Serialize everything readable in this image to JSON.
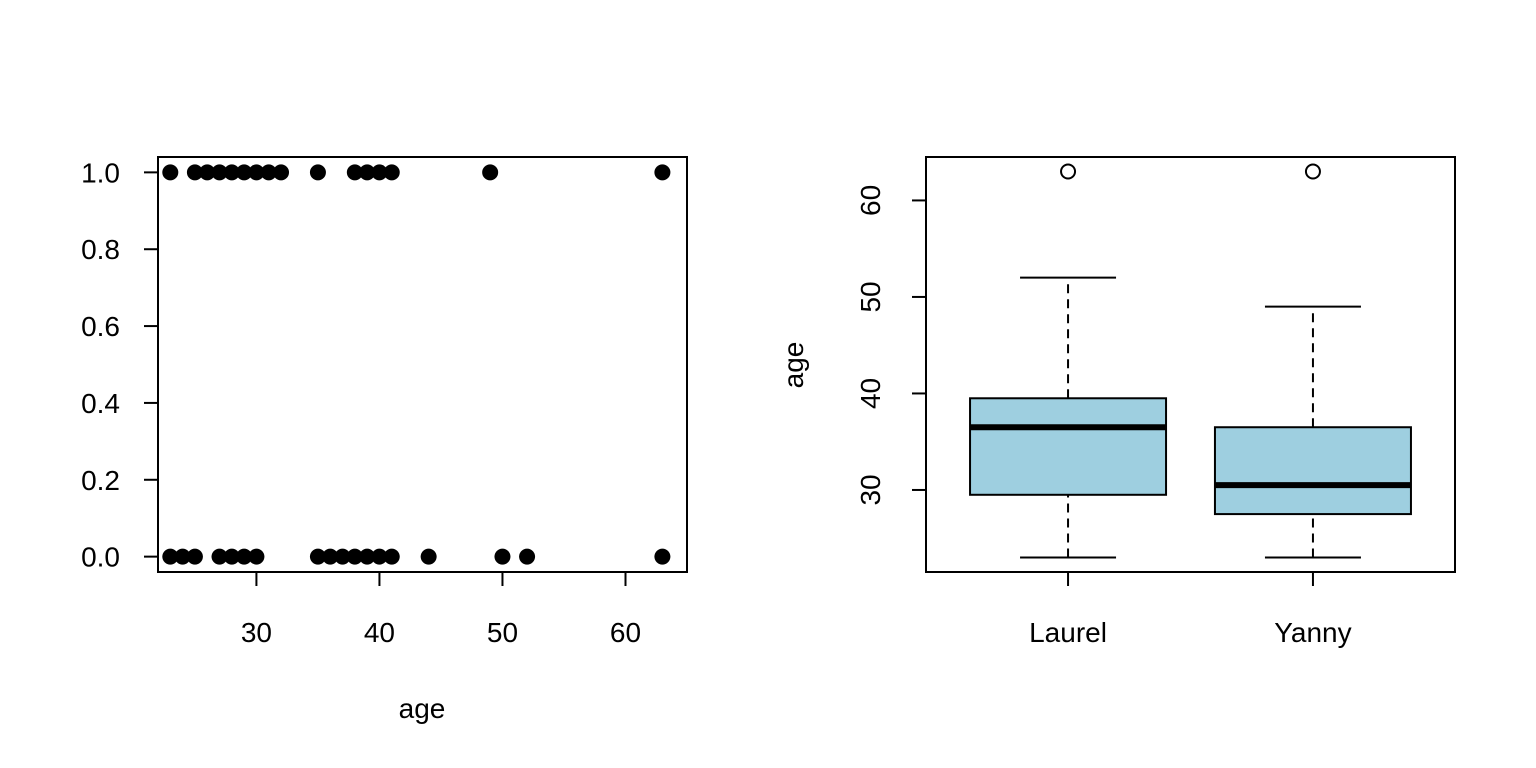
{
  "chart_data": [
    {
      "type": "scatter",
      "title": "",
      "xlabel": "age",
      "ylabel": "",
      "xlim": [
        22,
        65
      ],
      "ylim": [
        -0.04,
        1.04
      ],
      "x_ticks": [
        30,
        40,
        50,
        60
      ],
      "y_ticks": [
        0.0,
        0.2,
        0.4,
        0.6,
        0.8,
        1.0
      ],
      "y_tick_labels": [
        "0.0",
        "0.2",
        "0.4",
        "0.6",
        "0.8",
        "1.0"
      ],
      "marker_color": "#000000",
      "grid": false,
      "points": [
        {
          "x": 23,
          "y": 1
        },
        {
          "x": 25,
          "y": 1
        },
        {
          "x": 26,
          "y": 1
        },
        {
          "x": 27,
          "y": 1
        },
        {
          "x": 28,
          "y": 1
        },
        {
          "x": 29,
          "y": 1
        },
        {
          "x": 30,
          "y": 1
        },
        {
          "x": 31,
          "y": 1
        },
        {
          "x": 32,
          "y": 1
        },
        {
          "x": 35,
          "y": 1
        },
        {
          "x": 38,
          "y": 1
        },
        {
          "x": 39,
          "y": 1
        },
        {
          "x": 40,
          "y": 1
        },
        {
          "x": 41,
          "y": 1
        },
        {
          "x": 49,
          "y": 1
        },
        {
          "x": 63,
          "y": 1
        },
        {
          "x": 23,
          "y": 0
        },
        {
          "x": 24,
          "y": 0
        },
        {
          "x": 25,
          "y": 0
        },
        {
          "x": 27,
          "y": 0
        },
        {
          "x": 28,
          "y": 0
        },
        {
          "x": 29,
          "y": 0
        },
        {
          "x": 30,
          "y": 0
        },
        {
          "x": 35,
          "y": 0
        },
        {
          "x": 36,
          "y": 0
        },
        {
          "x": 37,
          "y": 0
        },
        {
          "x": 38,
          "y": 0
        },
        {
          "x": 39,
          "y": 0
        },
        {
          "x": 40,
          "y": 0
        },
        {
          "x": 41,
          "y": 0
        },
        {
          "x": 44,
          "y": 0
        },
        {
          "x": 50,
          "y": 0
        },
        {
          "x": 52,
          "y": 0
        },
        {
          "x": 63,
          "y": 0
        }
      ]
    },
    {
      "type": "box",
      "title": "",
      "xlabel": "",
      "ylabel": "age",
      "ylim": [
        21.5,
        64.5
      ],
      "y_ticks": [
        30,
        40,
        50,
        60
      ],
      "box_fill": "#9ecfe0",
      "grid": false,
      "categories": [
        "Laurel",
        "Yanny"
      ],
      "boxes": [
        {
          "category": "Laurel",
          "whisker_low": 23,
          "q1": 29.5,
          "median": 36.5,
          "q3": 39.5,
          "whisker_high": 52,
          "outliers": [
            63
          ]
        },
        {
          "category": "Yanny",
          "whisker_low": 23,
          "q1": 27.5,
          "median": 30.5,
          "q3": 36.5,
          "whisker_high": 49,
          "outliers": [
            63
          ]
        }
      ]
    }
  ]
}
